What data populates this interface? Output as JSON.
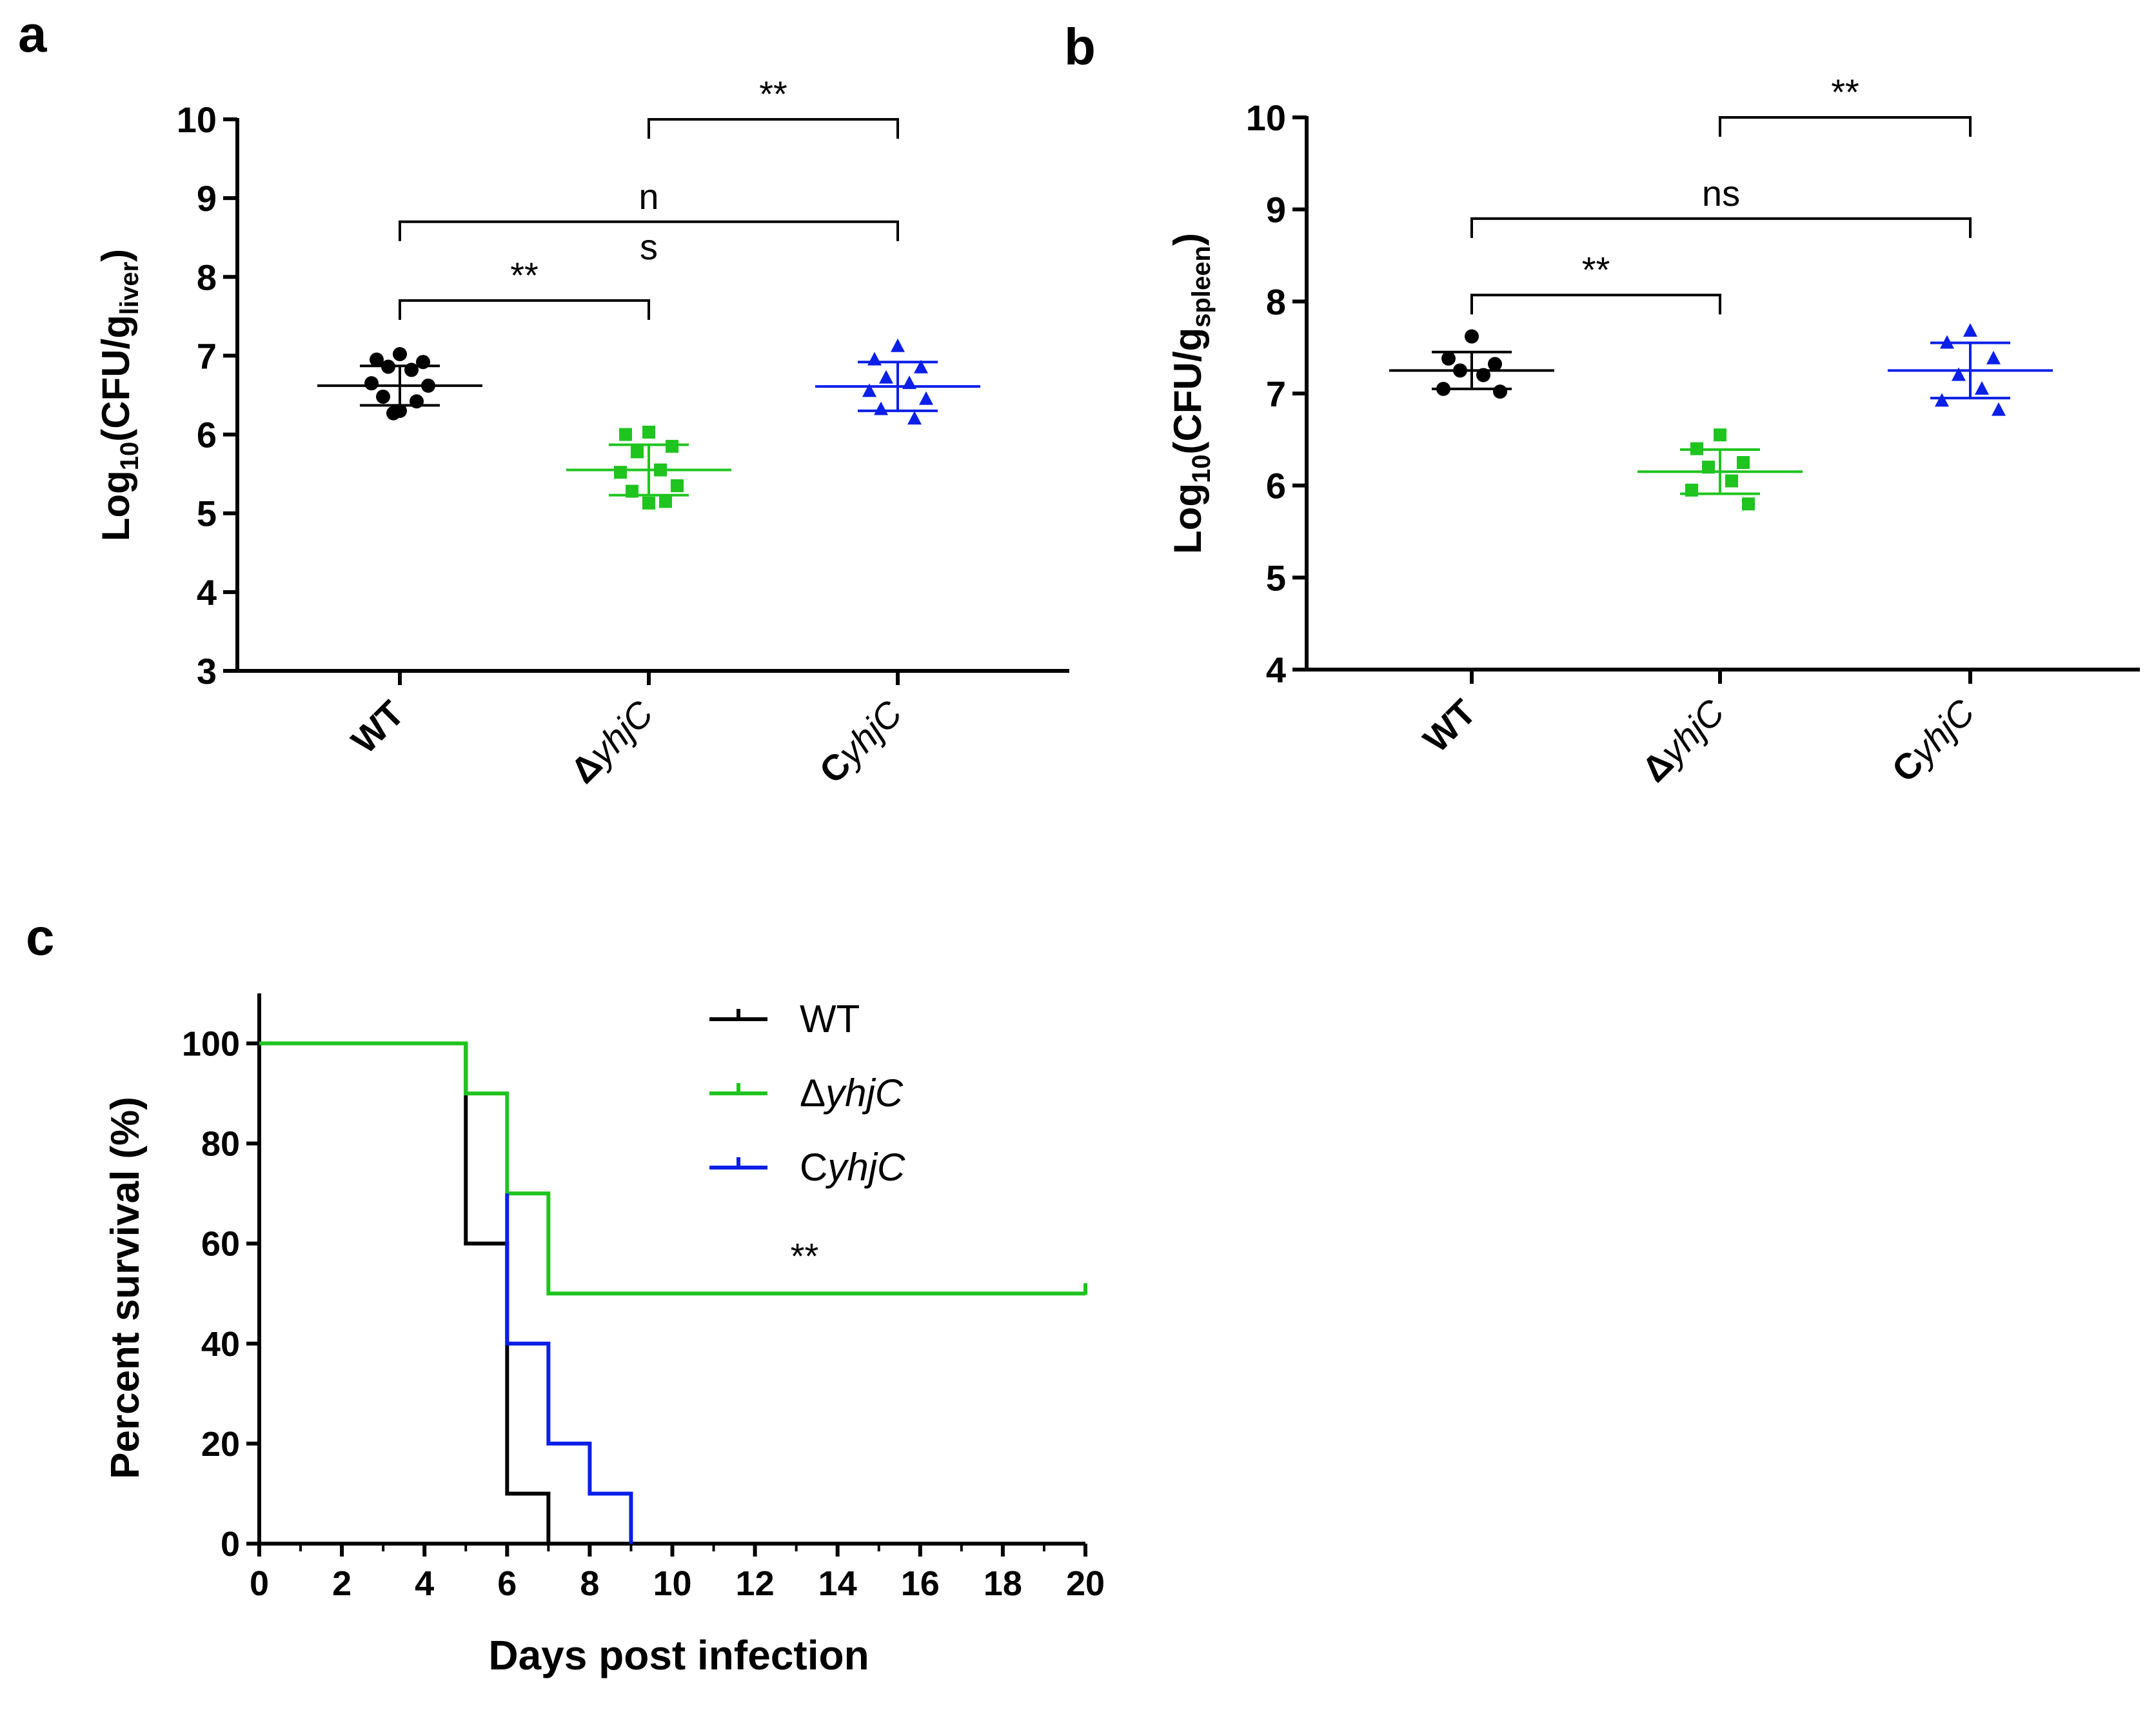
{
  "chart_data": [
    {
      "panel": "a",
      "type": "scatter",
      "ylabel_main": "Log",
      "ylabel_sub": "10",
      "ylabel_mid": "(CFU/g",
      "ylabel_sub2": "liver",
      "ylabel_end": ")",
      "ylim": [
        3,
        10
      ],
      "yticks": [
        3,
        4,
        5,
        6,
        7,
        8,
        9,
        10
      ],
      "categories": [
        {
          "prefix": "",
          "italic": "",
          "plain": "WT"
        },
        {
          "prefix": "Δ",
          "italic": "yhjC",
          "plain": ""
        },
        {
          "prefix": "C",
          "italic": "yhjC",
          "plain": ""
        }
      ],
      "groups": [
        {
          "name": "WT",
          "color": "#000000",
          "marker": "circle",
          "mean": 6.62,
          "sd": 0.25,
          "points": [
            7.02,
            6.95,
            6.92,
            6.86,
            6.82,
            6.65,
            6.62,
            6.48,
            6.42,
            6.3,
            6.27
          ]
        },
        {
          "name": "ΔyhjC",
          "color": "#1fc41f",
          "marker": "square",
          "mean": 5.55,
          "sd": 0.32,
          "points": [
            6.03,
            6.0,
            5.85,
            5.78,
            5.55,
            5.52,
            5.35,
            5.28,
            5.15,
            5.13
          ]
        },
        {
          "name": "CyhjC",
          "color": "#0a1fe8",
          "marker": "triangle",
          "mean": 6.61,
          "sd": 0.31,
          "points": [
            7.12,
            6.95,
            6.85,
            6.72,
            6.65,
            6.55,
            6.45,
            6.32,
            6.2
          ]
        }
      ],
      "brackets": [
        {
          "from": 1,
          "to": 2,
          "y": 10.0,
          "label": "**"
        },
        {
          "from": 0,
          "to": 2,
          "y": 8.7,
          "label": "n",
          "label2": "s"
        },
        {
          "from": 0,
          "to": 1,
          "y": 7.7,
          "label": "**"
        }
      ]
    },
    {
      "panel": "b",
      "type": "scatter",
      "ylabel_main": "Log",
      "ylabel_sub": "10",
      "ylabel_mid": "(CFU/g",
      "ylabel_sub2": "spleen",
      "ylabel_end": ")",
      "ylim": [
        4,
        10
      ],
      "yticks": [
        4,
        5,
        6,
        7,
        8,
        9,
        10
      ],
      "categories": [
        {
          "prefix": "",
          "italic": "",
          "plain": "WT"
        },
        {
          "prefix": "Δ",
          "italic": "yhjC",
          "plain": ""
        },
        {
          "prefix": "C",
          "italic": "yhjC",
          "plain": ""
        }
      ],
      "groups": [
        {
          "name": "WT",
          "color": "#000000",
          "marker": "circle",
          "mean": 7.25,
          "sd": 0.2,
          "points": [
            7.62,
            7.38,
            7.32,
            7.25,
            7.2,
            7.05,
            7.02
          ]
        },
        {
          "name": "ΔyhjC",
          "color": "#1fc41f",
          "marker": "square",
          "mean": 6.15,
          "sd": 0.24,
          "points": [
            6.55,
            6.4,
            6.25,
            6.2,
            6.05,
            5.95,
            5.8
          ]
        },
        {
          "name": "CyhjC",
          "color": "#0a1fe8",
          "marker": "triangle",
          "mean": 7.25,
          "sd": 0.3,
          "points": [
            7.68,
            7.55,
            7.38,
            7.2,
            7.05,
            6.92,
            6.82
          ]
        }
      ],
      "brackets": [
        {
          "from": 1,
          "to": 2,
          "y": 10.0,
          "label": "**"
        },
        {
          "from": 0,
          "to": 2,
          "y": 8.9,
          "label": "ns"
        },
        {
          "from": 0,
          "to": 1,
          "y": 8.07,
          "label": "**"
        }
      ]
    },
    {
      "panel": "c",
      "type": "line",
      "xlabel": "Days post infection",
      "ylabel": "Percent survival (%)",
      "xlim": [
        0,
        20
      ],
      "ylim": [
        0,
        110
      ],
      "xticks": [
        0,
        2,
        4,
        6,
        8,
        10,
        12,
        14,
        16,
        18,
        20
      ],
      "yticks": [
        0,
        20,
        40,
        60,
        80,
        100
      ],
      "legend_position": "top-center",
      "annotation": "**",
      "annotation_x": 13.2,
      "annotation_y": 55,
      "series": [
        {
          "name": "WT",
          "prefix": "",
          "italic": "",
          "plain": "WT",
          "color": "#000000",
          "points": [
            [
              0,
              100
            ],
            [
              5,
              100
            ],
            [
              5,
              60
            ],
            [
              6,
              60
            ],
            [
              6,
              10
            ],
            [
              7,
              10
            ],
            [
              7,
              0
            ],
            [
              20,
              0
            ]
          ]
        },
        {
          "name": "ΔyhjC",
          "prefix": "Δ",
          "italic": "yhjC",
          "plain": "",
          "color": "#1fc41f",
          "points": [
            [
              0,
              100
            ],
            [
              5,
              100
            ],
            [
              5,
              90
            ],
            [
              6,
              90
            ],
            [
              6,
              70
            ],
            [
              7,
              70
            ],
            [
              7,
              50
            ],
            [
              20,
              50
            ]
          ]
        },
        {
          "name": "CyhjC",
          "prefix": "C",
          "italic": "yhjC",
          "plain": "",
          "color": "#0a1fe8",
          "points": [
            [
              6,
              70
            ],
            [
              6,
              40
            ],
            [
              7,
              40
            ],
            [
              7,
              20
            ],
            [
              8,
              20
            ],
            [
              8,
              10
            ],
            [
              9,
              10
            ],
            [
              9,
              0
            ]
          ]
        }
      ]
    }
  ],
  "panel_labels": [
    "a",
    "b",
    "c"
  ]
}
